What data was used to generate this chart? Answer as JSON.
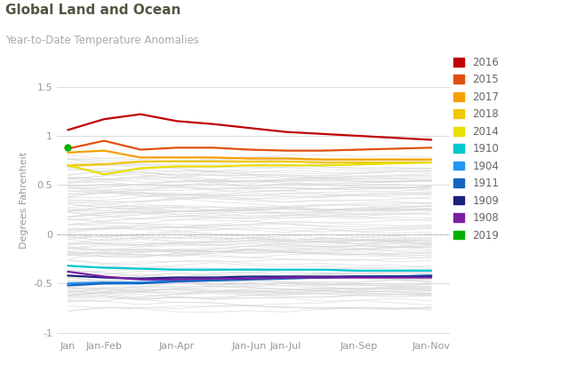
{
  "title": "Global Land and Ocean",
  "subtitle": "Year-to-Date Temperature Anomalies",
  "ylabel": "Degrees Fahrenheit",
  "xtick_labels": [
    "Jan",
    "Jan-Feb",
    "Jan-Apr",
    "Jan-Jun",
    "Jan-Jul",
    "Jan-Sep",
    "Jan-Nov"
  ],
  "xtick_positions": [
    0,
    1,
    3,
    5,
    6,
    8,
    10
  ],
  "ylim": [
    -1.05,
    1.75
  ],
  "yticks": [
    -1.0,
    -0.5,
    0.0,
    0.5,
    1.0,
    1.5
  ],
  "highlighted_years": {
    "2016": {
      "color": "#c00000",
      "data": [
        1.06,
        1.17,
        1.22,
        1.15,
        1.12,
        1.08,
        1.04,
        1.02,
        1.0,
        0.98,
        0.96
      ]
    },
    "2015": {
      "color": "#e05010",
      "data": [
        0.87,
        0.95,
        0.86,
        0.88,
        0.88,
        0.86,
        0.85,
        0.85,
        0.86,
        0.87,
        0.88
      ]
    },
    "2017": {
      "color": "#f5a000",
      "data": [
        0.83,
        0.85,
        0.78,
        0.78,
        0.78,
        0.77,
        0.77,
        0.76,
        0.76,
        0.76,
        0.76
      ]
    },
    "2018": {
      "color": "#f0c800",
      "data": [
        0.7,
        0.71,
        0.74,
        0.74,
        0.74,
        0.74,
        0.74,
        0.73,
        0.73,
        0.73,
        0.73
      ]
    },
    "2014": {
      "color": "#e8e000",
      "data": [
        0.7,
        0.61,
        0.67,
        0.69,
        0.69,
        0.7,
        0.7,
        0.7,
        0.71,
        0.72,
        0.73
      ]
    },
    "1910": {
      "color": "#00c8d0",
      "data": [
        -0.32,
        -0.34,
        -0.35,
        -0.36,
        -0.36,
        -0.36,
        -0.36,
        -0.36,
        -0.37,
        -0.37,
        -0.37
      ]
    },
    "1904": {
      "color": "#2196F3",
      "data": [
        -0.5,
        -0.49,
        -0.49,
        -0.47,
        -0.46,
        -0.45,
        -0.44,
        -0.44,
        -0.43,
        -0.43,
        -0.42
      ]
    },
    "1911": {
      "color": "#1565C0",
      "data": [
        -0.52,
        -0.5,
        -0.5,
        -0.48,
        -0.47,
        -0.46,
        -0.45,
        -0.44,
        -0.43,
        -0.43,
        -0.42
      ]
    },
    "1909": {
      "color": "#1a237e",
      "data": [
        -0.42,
        -0.44,
        -0.45,
        -0.44,
        -0.44,
        -0.43,
        -0.43,
        -0.43,
        -0.43,
        -0.43,
        -0.43
      ]
    },
    "1908": {
      "color": "#7B1FA2",
      "data": [
        -0.38,
        -0.43,
        -0.46,
        -0.46,
        -0.45,
        -0.45,
        -0.44,
        -0.44,
        -0.44,
        -0.44,
        -0.44
      ]
    },
    "2019": {
      "color": "#00b000",
      "data": [
        0.88
      ]
    }
  },
  "legend_items": [
    [
      "2016",
      "#c00000"
    ],
    [
      "2015",
      "#e05010"
    ],
    [
      "2017",
      "#f5a000"
    ],
    [
      "2018",
      "#f0c800"
    ],
    [
      "2014",
      "#e8e000"
    ],
    [
      "1910",
      "#00c8d0"
    ],
    [
      "1904",
      "#2196F3"
    ],
    [
      "1911",
      "#1565C0"
    ],
    [
      "1909",
      "#1a237e"
    ],
    [
      "1908",
      "#7B1FA2"
    ],
    [
      "2019",
      "#00b000"
    ]
  ],
  "background_color": "#ffffff",
  "plot_bg_color": "#ffffff",
  "grid_color": "#cccccc",
  "bg_line_color": "#d8d8d8",
  "title_color": "#555544",
  "subtitle_color": "#aaaaaa",
  "tick_color": "#999999",
  "ylabel_color": "#999999"
}
